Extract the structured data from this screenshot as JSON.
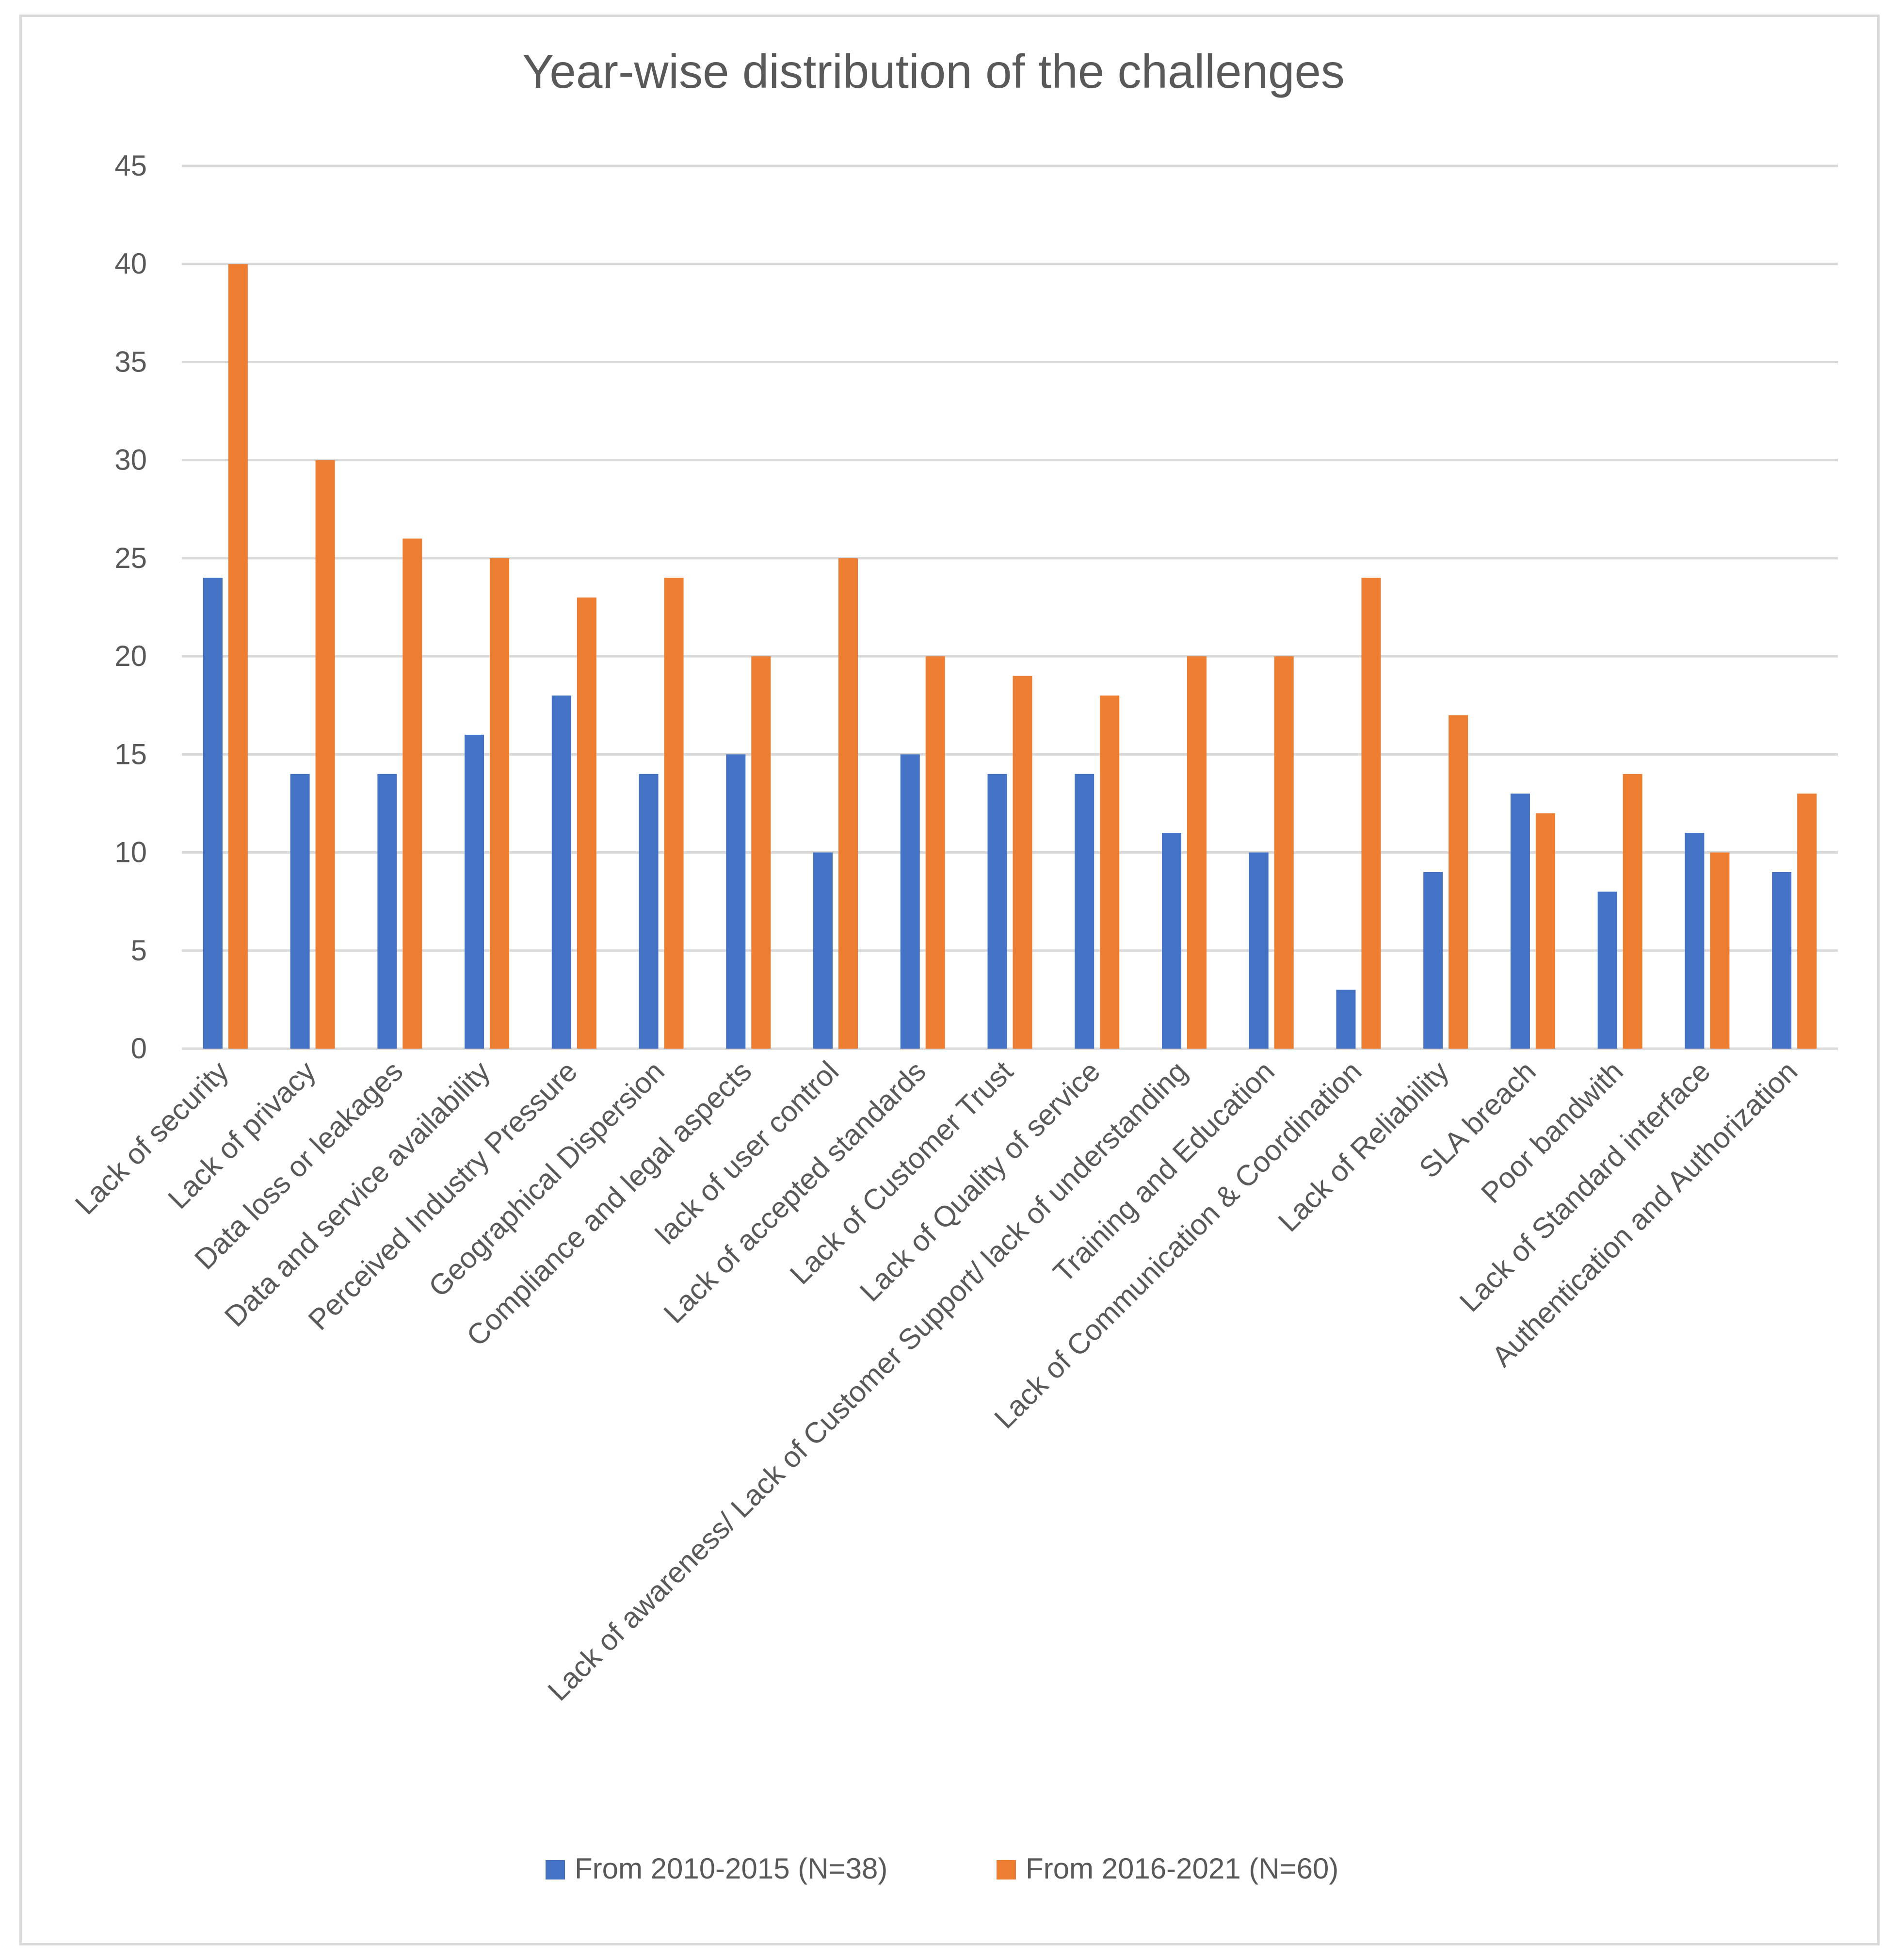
{
  "chart_data": {
    "type": "bar",
    "title": "Year-wise distribution of the challenges",
    "xlabel": "",
    "ylabel": "",
    "ylim": [
      0,
      45
    ],
    "yticks": [
      0,
      5,
      10,
      15,
      20,
      25,
      30,
      35,
      40,
      45
    ],
    "grid": true,
    "legend_position": "bottom",
    "categories": [
      "Lack of security",
      "Lack of privacy",
      "Data loss or leakages",
      "Data and service availability",
      "Perceived Industry Pressure",
      "Geographical Dispersion",
      "Compliance and legal aspects",
      "lack of user control",
      "Lack of accepted standards",
      "Lack of Customer Trust",
      "Lack of Quality of service",
      "Lack of awareness/ Lack of Customer Support/ lack of understanding",
      "Training and Education",
      "Lack of Communication & Coordination",
      "Lack of Reliability",
      "SLA breach",
      "Poor bandwith",
      "Lack of Standard interface",
      "Authentication and Authorization"
    ],
    "series": [
      {
        "name": "From 2010-2015 (N=38)",
        "color": "#4472c4",
        "values": [
          24,
          14,
          14,
          16,
          18,
          14,
          15,
          10,
          15,
          14,
          14,
          11,
          10,
          3,
          9,
          13,
          8,
          11,
          9
        ]
      },
      {
        "name": "From 2016-2021 (N=60)",
        "color": "#ed7d31",
        "values": [
          40,
          30,
          26,
          25,
          23,
          24,
          20,
          25,
          20,
          19,
          18,
          20,
          20,
          24,
          17,
          12,
          14,
          10,
          13
        ]
      }
    ],
    "colors": {
      "gridline": "#d9d9d9",
      "text": "#595959",
      "border": "#d9d9d9"
    }
  }
}
